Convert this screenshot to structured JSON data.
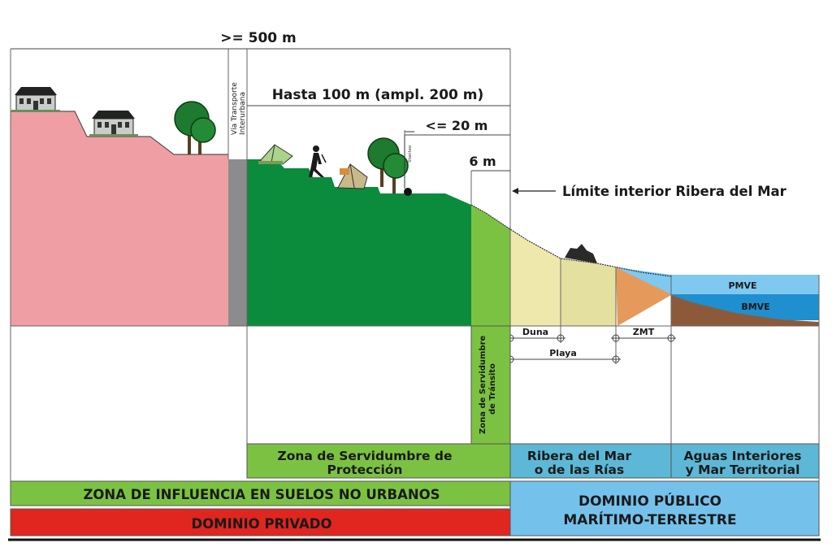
{
  "measures": {
    "total": ">= 500 m",
    "protection": "Hasta 100 m (ampl. 200 m)",
    "le20": "<= 20 m",
    "six": "6 m"
  },
  "labels": {
    "road": "Vía Transporte Interurbana",
    "road_line1": "Vía Transporte",
    "road_line2": "Interurbana",
    "limit": "Límite interior Ribera del Mar",
    "pmve": "PMVE",
    "bmve": "BMVE",
    "duna": "Duna",
    "zmt": "ZMT",
    "playa": "Playa",
    "transit_line1": "Zona de Servidumbre",
    "transit_line2": "de Tránsito",
    "sign": "Stanteo"
  },
  "zones": {
    "protection_line1": "Zona de Servidumbre de",
    "protection_line2": "Protección",
    "ribera_line1": "Ribera del Mar",
    "ribera_line2": "o de las Rías",
    "aguas_line1": "Aguas Interiores",
    "aguas_line2": "y Mar Territorial"
  },
  "bands": {
    "influence": "ZONA DE INFLUENCIA EN SUELOS NO URBANOS",
    "private": "DOMINIO PRIVADO",
    "public_line1": "DOMINIO PÚBLICO",
    "public_line2": "MARÍTIMO-TERRESTRE"
  },
  "colors": {
    "private_land": "#ef9fa3",
    "road": "#8c8c8c",
    "protection_green": "#0b8b3c",
    "transit_green": "#7cc242",
    "dune": "#efe8ad",
    "beach": "#e3e0a0",
    "zmt": "#e59a5b",
    "sea_light": "#7fc8ef",
    "sea_dark": "#1f8fcf",
    "seabed": "#8c5a3a",
    "zone_label_green": "#7cc242",
    "zone_label_blue": "#5cb8d6",
    "influence_band": "#7cc242",
    "private_band": "#e0261f",
    "public_band": "#74c2ec"
  }
}
